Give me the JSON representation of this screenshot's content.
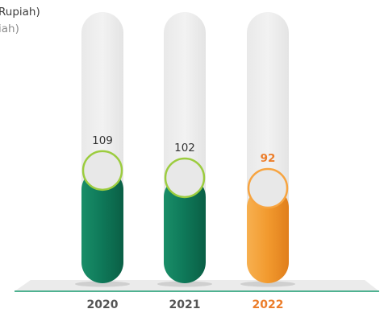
{
  "title": {
    "line1": "Rupiah)",
    "line2": "iah)"
  },
  "chart_data": {
    "type": "bar",
    "title": "",
    "xlabel": "",
    "ylabel": "",
    "categories": [
      "2020",
      "2021",
      "2022"
    ],
    "values": [
      109,
      102,
      92
    ],
    "ylim": [
      0,
      230
    ],
    "highlight_category": "2022"
  },
  "colors": {
    "green_bar": "#0f7a5a",
    "green_ring": "#9ccc3f",
    "orange_bar": "#f29a2e",
    "orange_ring": "#f7a440",
    "track": "#ececec",
    "label_default": "#333333",
    "label_highlight": "#ec7d2a",
    "floor": "#ebebeb",
    "floor_line": "#169a6e"
  }
}
